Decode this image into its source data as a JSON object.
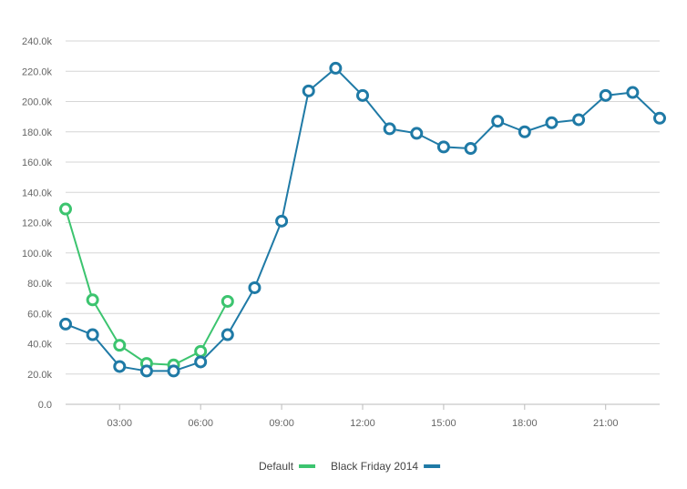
{
  "chart_data": {
    "type": "line",
    "title": "",
    "xlabel": "",
    "ylabel": "",
    "x_ticks": [
      "03:00",
      "06:00",
      "09:00",
      "12:00",
      "15:00",
      "18:00",
      "21:00"
    ],
    "y_ticks": [
      "0.0",
      "20.0k",
      "40.0k",
      "60.0k",
      "80.0k",
      "100.0k",
      "120.0k",
      "140.0k",
      "160.0k",
      "180.0k",
      "200.0k",
      "220.0k",
      "240.0k"
    ],
    "ylim": [
      0,
      240000
    ],
    "xlim_hours": [
      1,
      23
    ],
    "grid": "horizontal",
    "legend_position": "bottom-center",
    "series": [
      {
        "name": "Default",
        "color": "#3cc46f",
        "x_hours": [
          1,
          2,
          3,
          4,
          5,
          6,
          7
        ],
        "values": [
          129000,
          69000,
          39000,
          27000,
          26000,
          35000,
          68000
        ]
      },
      {
        "name": "Black Friday 2014",
        "color": "#1f7aa6",
        "x_hours": [
          1,
          2,
          3,
          4,
          5,
          6,
          7,
          8,
          9,
          10,
          11,
          12,
          13,
          14,
          15,
          16,
          17,
          18,
          19,
          20,
          21,
          22,
          23
        ],
        "values": [
          53000,
          46000,
          25000,
          22000,
          22000,
          28000,
          46000,
          77000,
          121000,
          207000,
          222000,
          204000,
          182000,
          179000,
          170000,
          169000,
          187000,
          180000,
          186000,
          188000,
          204000,
          206000,
          189000
        ]
      }
    ]
  }
}
